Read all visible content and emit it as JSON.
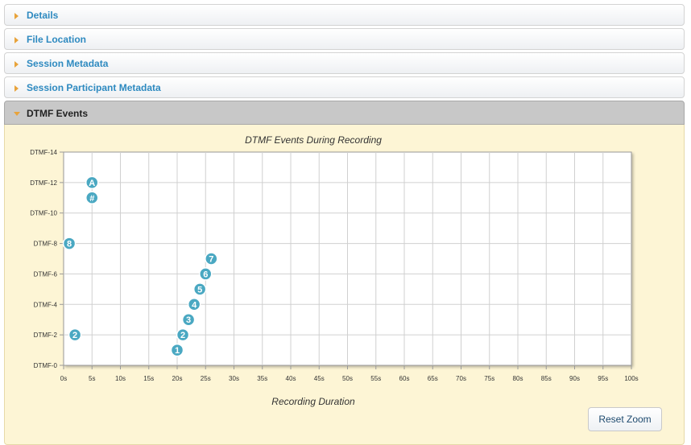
{
  "accordion": {
    "sections": [
      {
        "label": "Details"
      },
      {
        "label": "File Location"
      },
      {
        "label": "Session Metadata"
      },
      {
        "label": "Session Participant Metadata"
      },
      {
        "label": "DTMF Events"
      }
    ]
  },
  "colors": {
    "point_fill": "#4aa8c2",
    "point_stroke": "#ffffff",
    "grid": "#d0d0d0",
    "plot_bg": "#ffffff"
  },
  "reset_zoom_label": "Reset Zoom",
  "chart_data": {
    "type": "scatter",
    "title": "DTMF Events During Recording",
    "xlabel": "Recording Duration",
    "ylabel": "",
    "xlim": [
      0,
      100
    ],
    "ylim": [
      0,
      14
    ],
    "x_ticks": [
      0,
      5,
      10,
      15,
      20,
      25,
      30,
      35,
      40,
      45,
      50,
      55,
      60,
      65,
      70,
      75,
      80,
      85,
      90,
      95,
      100
    ],
    "x_tick_labels": [
      "0s",
      "5s",
      "10s",
      "15s",
      "20s",
      "25s",
      "30s",
      "35s",
      "40s",
      "45s",
      "50s",
      "55s",
      "60s",
      "65s",
      "70s",
      "75s",
      "80s",
      "85s",
      "90s",
      "95s",
      "100s"
    ],
    "y_ticks": [
      0,
      2,
      4,
      6,
      8,
      10,
      12,
      14
    ],
    "y_tick_labels": [
      "DTMF-0",
      "DTMF-2",
      "DTMF-4",
      "DTMF-6",
      "DTMF-8",
      "DTMF-10",
      "DTMF-12",
      "DTMF-14"
    ],
    "grid": true,
    "points": [
      {
        "x": 5,
        "y": 12,
        "label": "A"
      },
      {
        "x": 5,
        "y": 11,
        "label": "#"
      },
      {
        "x": 1,
        "y": 8,
        "label": "8"
      },
      {
        "x": 2,
        "y": 2,
        "label": "2"
      },
      {
        "x": 20,
        "y": 1,
        "label": "1"
      },
      {
        "x": 21,
        "y": 2,
        "label": "2"
      },
      {
        "x": 22,
        "y": 3,
        "label": "3"
      },
      {
        "x": 23,
        "y": 4,
        "label": "4"
      },
      {
        "x": 24,
        "y": 5,
        "label": "5"
      },
      {
        "x": 25,
        "y": 6,
        "label": "6"
      },
      {
        "x": 26,
        "y": 7,
        "label": "7"
      }
    ]
  }
}
